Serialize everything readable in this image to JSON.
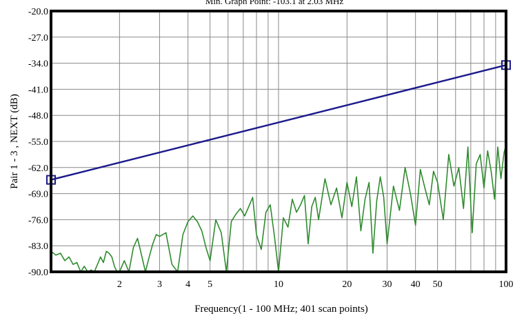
{
  "chart_data": {
    "type": "line",
    "title": "Min. Graph Point: -103.1 at 2.03 MHz",
    "xlabel": "Frequency(1 - 100 MHz; 401 scan points)",
    "ylabel": "Pair 1 - 3 , NEXT (dB)",
    "x_scale": "log",
    "xlim": [
      1,
      100
    ],
    "ylim": [
      -90,
      -20
    ],
    "x_ticks": [
      2,
      3,
      4,
      5,
      10,
      20,
      30,
      40,
      50,
      100
    ],
    "x_tick_labels": [
      "2",
      "3",
      "4",
      "5",
      "10",
      "20",
      "30",
      "40",
      "50",
      "100"
    ],
    "y_ticks": [
      -20,
      -27,
      -34,
      -41,
      -48,
      -55,
      -62,
      -69,
      -76,
      -83,
      -90
    ],
    "y_tick_labels": [
      "-20.0",
      "-27.0",
      "-34.0",
      "-41.0",
      "-48.0",
      "-55.0",
      "-62.0",
      "-69.0",
      "-76.0",
      "-83.0",
      "-90.0"
    ],
    "grid": true,
    "series": [
      {
        "color": "#1a1a8c",
        "markers": "square-at-ends",
        "x": [
          1,
          100
        ],
        "y": [
          -65.3,
          -34.5
        ]
      },
      {
        "color": "#2e8b2e",
        "x": [
          1.0,
          1.05,
          1.1,
          1.15,
          1.2,
          1.25,
          1.3,
          1.35,
          1.4,
          1.45,
          1.5,
          1.55,
          1.6,
          1.65,
          1.7,
          1.75,
          1.8,
          1.85,
          1.9,
          1.95,
          2.0,
          2.1,
          2.2,
          2.3,
          2.4,
          2.5,
          2.6,
          2.7,
          2.8,
          2.9,
          3.0,
          3.2,
          3.4,
          3.6,
          3.8,
          4.0,
          4.2,
          4.4,
          4.6,
          4.8,
          5.0,
          5.3,
          5.6,
          5.9,
          6.2,
          6.5,
          6.8,
          7.1,
          7.4,
          7.7,
          8.0,
          8.4,
          8.8,
          9.2,
          9.6,
          10.0,
          10.5,
          11.0,
          11.5,
          12.0,
          12.5,
          13.0,
          13.5,
          14.0,
          14.5,
          15.0,
          16.0,
          17.0,
          18.0,
          19.0,
          20.0,
          21.0,
          22.0,
          23.0,
          24.0,
          25.0,
          26.0,
          27.0,
          28.0,
          29.0,
          30.0,
          32.0,
          34.0,
          36.0,
          38.0,
          40.0,
          42.0,
          44.0,
          46.0,
          48.0,
          50.0,
          53.0,
          56.0,
          59.0,
          62.0,
          65.0,
          68.0,
          71.0,
          74.0,
          77.0,
          80.0,
          83.0,
          86.0,
          89.0,
          92.0,
          95.0,
          98.0,
          100.0
        ],
        "y": [
          -84.5,
          -85.5,
          -85.0,
          -87.0,
          -86.0,
          -88.0,
          -87.5,
          -90.0,
          -88.5,
          -90.0,
          -89.5,
          -90.0,
          -88.0,
          -86.0,
          -87.5,
          -84.5,
          -85.0,
          -86.0,
          -88.5,
          -90.0,
          -90.0,
          -87.0,
          -90.0,
          -83.5,
          -81.0,
          -85.5,
          -90.0,
          -86.0,
          -82.5,
          -80.0,
          -80.5,
          -79.5,
          -88.0,
          -90.0,
          -80.0,
          -76.5,
          -75.0,
          -76.5,
          -79.0,
          -83.5,
          -87.0,
          -76.0,
          -79.5,
          -90.0,
          -76.5,
          -74.5,
          -73.0,
          -75.0,
          -72.5,
          -70.0,
          -80.0,
          -84.0,
          -74.0,
          -72.0,
          -80.5,
          -90.0,
          -75.5,
          -78.0,
          -70.5,
          -74.0,
          -72.0,
          -69.5,
          -82.5,
          -72.5,
          -70.0,
          -76.0,
          -65.0,
          -72.0,
          -67.5,
          -75.5,
          -66.0,
          -72.5,
          -64.5,
          -79.0,
          -70.5,
          -66.0,
          -85.0,
          -71.0,
          -64.5,
          -70.0,
          -82.5,
          -67.0,
          -73.5,
          -62.0,
          -69.0,
          -77.5,
          -62.5,
          -67.5,
          -72.0,
          -63.0,
          -66.0,
          -76.0,
          -58.5,
          -67.0,
          -62.0,
          -73.0,
          -56.5,
          -79.5,
          -61.0,
          -58.5,
          -67.5,
          -57.5,
          -63.0,
          -70.5,
          -56.5,
          -65.0,
          -58.0,
          -56.0
        ]
      }
    ]
  }
}
